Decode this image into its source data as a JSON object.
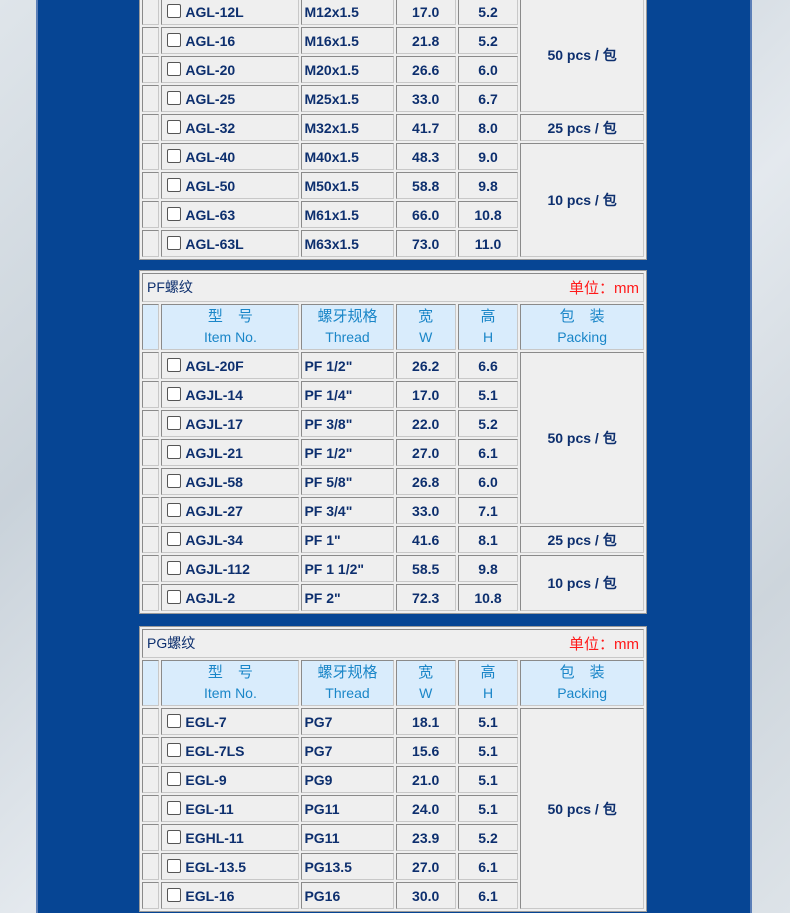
{
  "headers": {
    "model_cn": "型　号",
    "model_en": "Item No.",
    "thread_cn": "螺牙规格",
    "thread_en": "Thread",
    "w_cn": "宽",
    "w_en": "W",
    "h_cn": "高",
    "h_en": "H",
    "pack_cn": "包　装",
    "pack_en": "Packing"
  },
  "unit": "单位：mm",
  "tables": [
    {
      "title": "",
      "header": false,
      "rows": [
        [
          "AGL-12L",
          "M12x1.5",
          "17.0",
          "5.2"
        ],
        [
          "AGL-16",
          "M16x1.5",
          "21.8",
          "5.2"
        ],
        [
          "AGL-20",
          "M20x1.5",
          "26.6",
          "6.0"
        ],
        [
          "AGL-25",
          "M25x1.5",
          "33.0",
          "6.7"
        ],
        [
          "AGL-32",
          "M32x1.5",
          "41.7",
          "8.0"
        ],
        [
          "AGL-40",
          "M40x1.5",
          "48.3",
          "9.0"
        ],
        [
          "AGL-50",
          "M50x1.5",
          "58.8",
          "9.8"
        ],
        [
          "AGL-63",
          "M61x1.5",
          "66.0",
          "10.8"
        ],
        [
          "AGL-63L",
          "M63x1.5",
          "73.0",
          "11.0"
        ]
      ],
      "packing": [
        {
          "label": "50 pcs / 包",
          "span": 4
        },
        {
          "label": "25 pcs / 包",
          "span": 1
        },
        {
          "label": "10 pcs / 包",
          "span": 4
        }
      ]
    },
    {
      "title": "PF螺纹",
      "header": true,
      "rows": [
        [
          "AGL-20F",
          "PF 1/2\"",
          "26.2",
          "6.6"
        ],
        [
          "AGJL-14",
          "PF 1/4\"",
          "17.0",
          "5.1"
        ],
        [
          "AGJL-17",
          "PF 3/8\"",
          "22.0",
          "5.2"
        ],
        [
          "AGJL-21",
          "PF 1/2\"",
          "27.0",
          "6.1"
        ],
        [
          "AGJL-58",
          "PF 5/8\"",
          "26.8",
          "6.0"
        ],
        [
          "AGJL-27",
          "PF 3/4\"",
          "33.0",
          "7.1"
        ],
        [
          "AGJL-34",
          "PF 1\"",
          "41.6",
          "8.1"
        ],
        [
          "AGJL-112",
          "PF 1 1/2\"",
          "58.5",
          "9.8"
        ],
        [
          "AGJL-2",
          "PF 2\"",
          "72.3",
          "10.8"
        ]
      ],
      "packing": [
        {
          "label": "50 pcs / 包",
          "span": 6
        },
        {
          "label": "25 pcs / 包",
          "span": 1
        },
        {
          "label": "10 pcs / 包",
          "span": 2
        }
      ]
    },
    {
      "title": "PG螺纹",
      "header": true,
      "rows": [
        [
          "EGL-7",
          "PG7",
          "18.1",
          "5.1"
        ],
        [
          "EGL-7LS",
          "PG7",
          "15.6",
          "5.1"
        ],
        [
          "EGL-9",
          "PG9",
          "21.0",
          "5.1"
        ],
        [
          "EGL-11",
          "PG11",
          "24.0",
          "5.1"
        ],
        [
          "EGHL-11",
          "PG11",
          "23.9",
          "5.2"
        ],
        [
          "EGL-13.5",
          "PG13.5",
          "27.0",
          "6.1"
        ],
        [
          "EGL-16",
          "PG16",
          "30.0",
          "6.1"
        ]
      ],
      "packing": [
        {
          "label": "50 pcs / 包",
          "span": 7
        }
      ]
    }
  ]
}
